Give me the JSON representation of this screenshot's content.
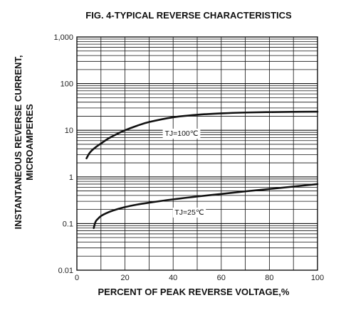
{
  "chart_data": {
    "type": "line",
    "title": "FIG. 4-TYPICAL REVERSE CHARACTERISTICS",
    "xlabel": "PERCENT OF PEAK REVERSE VOLTAGE,%",
    "ylabel_line1": "INSTANTANEOUS REVERSE CURRENT,",
    "ylabel_line2": "MICROAMPERES",
    "xlim": [
      0,
      100
    ],
    "ylim": [
      0.01,
      1000
    ],
    "y_scale": "log",
    "grid": true,
    "x_ticks": [
      "0",
      "20",
      "40",
      "60",
      "80",
      "100"
    ],
    "y_ticks": [
      "0.01",
      "0.1",
      "1",
      "10",
      "100",
      "1,000"
    ],
    "series": [
      {
        "name": "TJ=100℃",
        "x": [
          4,
          5,
          6,
          8,
          10,
          13,
          16,
          20,
          25,
          30,
          40,
          50,
          60,
          70,
          80,
          90,
          100
        ],
        "y": [
          2.5,
          3.1,
          3.6,
          4.4,
          5.2,
          6.6,
          8.0,
          10,
          12.5,
          15,
          19,
          21.5,
          23,
          24,
          24.5,
          24.8,
          25
        ]
      },
      {
        "name": "TJ=25℃",
        "x": [
          7,
          7.5,
          8,
          9,
          10,
          12,
          15,
          20,
          25,
          30,
          40,
          50,
          60,
          70,
          80,
          90,
          100
        ],
        "y": [
          0.08,
          0.1,
          0.115,
          0.13,
          0.145,
          0.165,
          0.19,
          0.225,
          0.255,
          0.28,
          0.33,
          0.38,
          0.43,
          0.49,
          0.55,
          0.62,
          0.7
        ]
      }
    ],
    "annotations": [
      {
        "text": "TJ=100℃",
        "series": 0
      },
      {
        "text": "TJ=25℃",
        "series": 1
      }
    ]
  }
}
